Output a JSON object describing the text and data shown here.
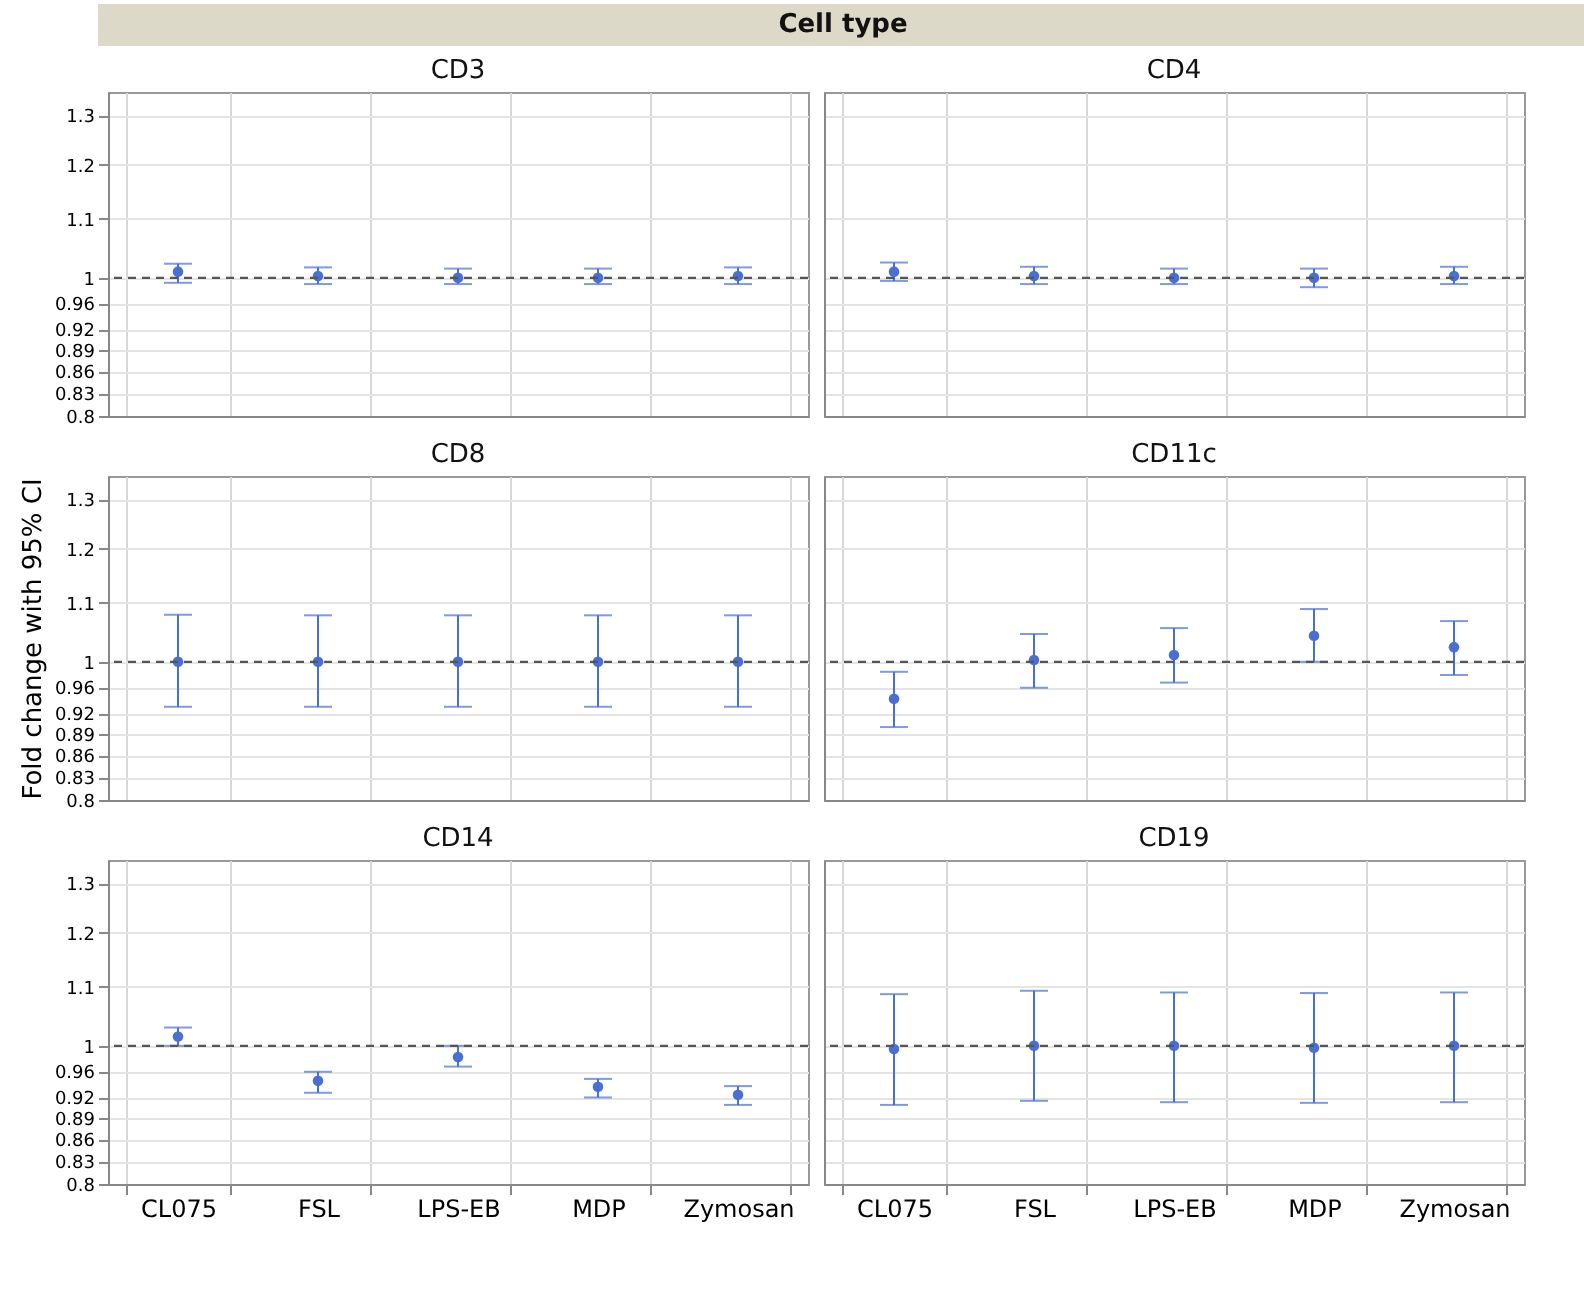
{
  "chart_data": [
    {
      "type": "scatter",
      "title": "CD3",
      "annotations": [
        "Cell type"
      ],
      "categories": [
        "CL075",
        "FSL",
        "LPS-EB",
        "MDP",
        "Zymosan"
      ],
      "series": [
        {
          "color": "#4a6fd3",
          "values": [
            1.01,
            1.003,
            1.0,
            1.0,
            1.003
          ],
          "errors": [
            [
              0.992,
              1.023
            ],
            [
              0.99,
              1.017
            ],
            [
              0.99,
              1.015
            ],
            [
              0.99,
              1.015
            ],
            [
              0.99,
              1.017
            ]
          ]
        }
      ],
      "marker": "circle",
      "log": "y",
      "ylim": [
        0.8,
        1.35
      ],
      "yticks": [
        0.8,
        0.83,
        0.86,
        0.89,
        0.92,
        0.96,
        1,
        1.1,
        1.2,
        1.3
      ],
      "grid": true,
      "ref_lines": [
        {
          "axis": "y",
          "value": 1,
          "color": "#555555",
          "line_style": "dashed"
        }
      ],
      "tick_labels": "y"
    },
    {
      "type": "scatter",
      "title": "CD4",
      "categories": [
        "CL075",
        "FSL",
        "LPS-EB",
        "MDP",
        "Zymosan"
      ],
      "series": [
        {
          "color": "#4a6fd3",
          "values": [
            1.01,
            1.003,
            1.0,
            1.0,
            1.003
          ],
          "errors": [
            [
              0.995,
              1.025
            ],
            [
              0.99,
              1.018
            ],
            [
              0.99,
              1.015
            ],
            [
              0.985,
              1.015
            ],
            [
              0.99,
              1.018
            ]
          ]
        }
      ],
      "marker": "circle",
      "log": "y",
      "ylim": [
        0.8,
        1.35
      ],
      "yticks": [
        0.8,
        0.83,
        0.86,
        0.89,
        0.92,
        0.96,
        1,
        1.1,
        1.2,
        1.3
      ],
      "grid": true,
      "ref_lines": [
        {
          "axis": "y",
          "value": 1,
          "color": "#555555",
          "line_style": "dashed"
        }
      ],
      "tick_labels": false
    },
    {
      "type": "scatter",
      "title": "CD8",
      "ylabel": "Fold change with 95% CI",
      "categories": [
        "CL075",
        "FSL",
        "LPS-EB",
        "MDP",
        "Zymosan"
      ],
      "series": [
        {
          "color": "#4a6fd3",
          "values": [
            1.0,
            1.0,
            1.0,
            1.0,
            1.0
          ],
          "errors": [
            [
              0.93,
              1.079
            ],
            [
              0.93,
              1.078
            ],
            [
              0.93,
              1.078
            ],
            [
              0.93,
              1.078
            ],
            [
              0.93,
              1.078
            ]
          ]
        }
      ],
      "marker": "circle",
      "log": "y",
      "ylim": [
        0.8,
        1.35
      ],
      "yticks": [
        0.8,
        0.83,
        0.86,
        0.89,
        0.92,
        0.96,
        1,
        1.1,
        1.2,
        1.3
      ],
      "grid": true,
      "ref_lines": [
        {
          "axis": "y",
          "value": 1,
          "color": "#555555",
          "line_style": "dashed"
        }
      ],
      "tick_labels": "y"
    },
    {
      "type": "scatter",
      "title": "CD11c",
      "categories": [
        "CL075",
        "FSL",
        "LPS-EB",
        "MDP",
        "Zymosan"
      ],
      "series": [
        {
          "color": "#4a6fd3",
          "values": [
            0.942,
            1.003,
            1.011,
            1.043,
            1.024
          ],
          "errors": [
            [
              0.9,
              0.984
            ],
            [
              0.959,
              1.046
            ],
            [
              0.967,
              1.056
            ],
            [
              1.0,
              1.089
            ],
            [
              0.979,
              1.068
            ]
          ]
        }
      ],
      "marker": "circle",
      "log": "y",
      "ylim": [
        0.8,
        1.35
      ],
      "yticks": [
        0.8,
        0.83,
        0.86,
        0.89,
        0.92,
        0.96,
        1,
        1.1,
        1.2,
        1.3
      ],
      "grid": true,
      "ref_lines": [
        {
          "axis": "y",
          "value": 1,
          "color": "#555555",
          "line_style": "dashed"
        }
      ],
      "tick_labels": false
    },
    {
      "type": "scatter",
      "title": "CD14",
      "categories": [
        "CL075",
        "FSL",
        "LPS-EB",
        "MDP",
        "Zymosan"
      ],
      "series": [
        {
          "color": "#4a6fd3",
          "values": [
            1.015,
            0.945,
            0.982,
            0.936,
            0.924
          ],
          "errors": [
            [
              1.0,
              1.03
            ],
            [
              0.927,
              0.959
            ],
            [
              0.967,
              1.0
            ],
            [
              0.92,
              0.948
            ],
            [
              0.909,
              0.937
            ]
          ]
        }
      ],
      "marker": "circle",
      "log": "y",
      "ylim": [
        0.8,
        1.35
      ],
      "yticks": [
        0.8,
        0.83,
        0.86,
        0.89,
        0.92,
        0.96,
        1,
        1.1,
        1.2,
        1.3
      ],
      "grid": true,
      "ref_lines": [
        {
          "axis": "y",
          "value": 1,
          "color": "#555555",
          "line_style": "dashed"
        }
      ]
    },
    {
      "type": "scatter",
      "title": "CD19",
      "categories": [
        "CL075",
        "FSL",
        "LPS-EB",
        "MDP",
        "Zymosan"
      ],
      "series": [
        {
          "color": "#4a6fd3",
          "values": [
            0.995,
            1.0,
            1.0,
            0.997,
            1.0
          ],
          "errors": [
            [
              0.909,
              1.087
            ],
            [
              0.915,
              1.093
            ],
            [
              0.913,
              1.09
            ],
            [
              0.912,
              1.089
            ],
            [
              0.913,
              1.09
            ]
          ]
        }
      ],
      "marker": "circle",
      "log": "y",
      "ylim": [
        0.8,
        1.35
      ],
      "yticks": [
        0.8,
        0.83,
        0.86,
        0.89,
        0.92,
        0.96,
        1,
        1.1,
        1.2,
        1.3
      ],
      "grid": true,
      "ref_lines": [
        {
          "axis": "y",
          "value": 1,
          "color": "#555555",
          "line_style": "dashed"
        }
      ],
      "tick_labels": "x"
    }
  ]
}
